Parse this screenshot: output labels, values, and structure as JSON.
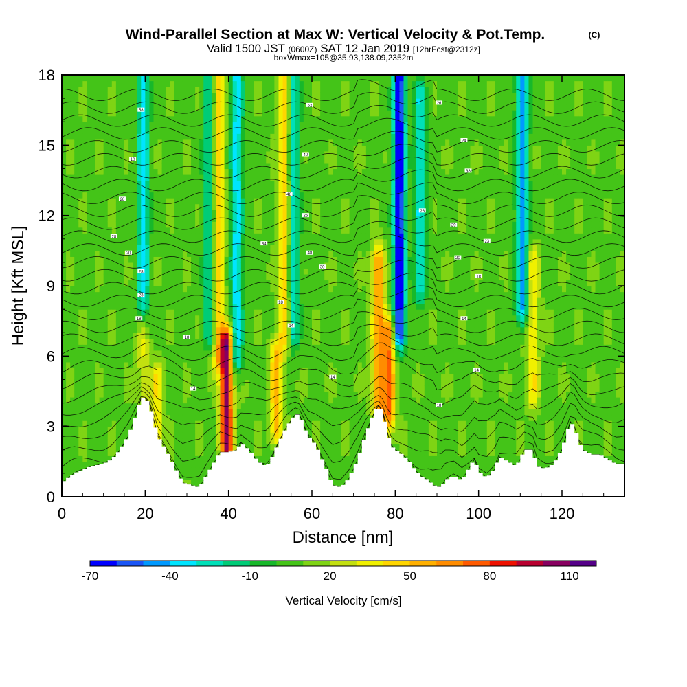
{
  "header": {
    "title": "Wind-Parallel Section at Max W: Vertical Velocity & Pot.Temp.",
    "copyright": "(C)",
    "valid_prefix": "Valid 1500 JST",
    "valid_zulu": "(0600Z)",
    "valid_date": "SAT 12 Jan 2019",
    "forecast": "[12hrFcst@2312z]",
    "box_info": "boxWmax=105@35.93,138.09,2352m"
  },
  "chart_data": {
    "type": "heatmap",
    "xlabel": "Distance [nm]",
    "ylabel": "Height [Kft MSL]",
    "xlim": [
      0,
      135
    ],
    "ylim": [
      0,
      18
    ],
    "x_ticks": [
      "0",
      "20",
      "40",
      "60",
      "80",
      "100",
      "120"
    ],
    "y_ticks": [
      "0",
      "3",
      "6",
      "9",
      "12",
      "15",
      "18"
    ],
    "x_tick_values": [
      0,
      20,
      40,
      60,
      80,
      100,
      120
    ],
    "y_tick_values": [
      0,
      3,
      6,
      9,
      12,
      15,
      18
    ],
    "colorbar": {
      "label": "Vertical Velocity [cm/s]",
      "tick_labels": [
        "-70",
        "-40",
        "-10",
        "20",
        "50",
        "80",
        "110"
      ],
      "tick_values": [
        -70,
        -40,
        -10,
        20,
        50,
        80,
        110
      ],
      "range": [
        -70,
        120
      ],
      "colors": [
        "#0000ff",
        "#1a55f5",
        "#0099ff",
        "#00e5ff",
        "#00e0b8",
        "#00cc77",
        "#17b82a",
        "#44c418",
        "#7fd414",
        "#c3e010",
        "#f0f000",
        "#ffd600",
        "#ffb000",
        "#ff8c00",
        "#ff5a00",
        "#ee1100",
        "#b80030",
        "#880060",
        "#550088"
      ]
    },
    "terrain_kft": [
      [
        0,
        0.6
      ],
      [
        3,
        1.0
      ],
      [
        7,
        1.3
      ],
      [
        10,
        1.4
      ],
      [
        12,
        1.6
      ],
      [
        14,
        2.0
      ],
      [
        16,
        2.6
      ],
      [
        18,
        3.6
      ],
      [
        19,
        4.2
      ],
      [
        20,
        4.2
      ],
      [
        21,
        4.0
      ],
      [
        22,
        3.3
      ],
      [
        23,
        2.6
      ],
      [
        25,
        2.0
      ],
      [
        27,
        1.3
      ],
      [
        29,
        0.6
      ],
      [
        31,
        0.5
      ],
      [
        33,
        0.4
      ],
      [
        35,
        1.0
      ],
      [
        37,
        1.6
      ],
      [
        38,
        1.9
      ],
      [
        40,
        1.9
      ],
      [
        42,
        2.0
      ],
      [
        43,
        2.3
      ],
      [
        45,
        2.0
      ],
      [
        47,
        1.5
      ],
      [
        49,
        1.3
      ],
      [
        50,
        1.5
      ],
      [
        52,
        2.3
      ],
      [
        54,
        3.0
      ],
      [
        56,
        3.5
      ],
      [
        57,
        3.5
      ],
      [
        59,
        2.6
      ],
      [
        61,
        2.2
      ],
      [
        63,
        1.4
      ],
      [
        65,
        0.5
      ],
      [
        67,
        0.4
      ],
      [
        69,
        0.8
      ],
      [
        71,
        1.6
      ],
      [
        73,
        2.7
      ],
      [
        75,
        3.6
      ],
      [
        76,
        3.9
      ],
      [
        77,
        3.6
      ],
      [
        78,
        2.8
      ],
      [
        79,
        2.2
      ],
      [
        80,
        2.0
      ],
      [
        81,
        1.9
      ],
      [
        83,
        1.6
      ],
      [
        85,
        1.1
      ],
      [
        86,
        0.9
      ],
      [
        88,
        0.7
      ],
      [
        89,
        0.5
      ],
      [
        91,
        0.4
      ],
      [
        92,
        0.7
      ],
      [
        94,
        0.9
      ],
      [
        96,
        0.7
      ],
      [
        98,
        1.3
      ],
      [
        99,
        1.6
      ],
      [
        100,
        1.1
      ],
      [
        102,
        0.8
      ],
      [
        104,
        1.2
      ],
      [
        105,
        1.7
      ],
      [
        107,
        1.5
      ],
      [
        109,
        1.3
      ],
      [
        110,
        1.6
      ],
      [
        111,
        2.0
      ],
      [
        113,
        2.0
      ],
      [
        114,
        1.3
      ],
      [
        116,
        1.2
      ],
      [
        118,
        1.4
      ],
      [
        120,
        2.0
      ],
      [
        121,
        2.6
      ],
      [
        122,
        3.2
      ],
      [
        123,
        3.0
      ],
      [
        124,
        2.4
      ],
      [
        125,
        2.0
      ],
      [
        127,
        1.8
      ],
      [
        129,
        1.8
      ],
      [
        131,
        1.6
      ],
      [
        133,
        1.4
      ],
      [
        135,
        1.4
      ]
    ],
    "updraft_columns": [
      {
        "x": 19.5,
        "base": 4.5,
        "top": 7.5,
        "peak_w": 30
      },
      {
        "x": 23,
        "base": 2.5,
        "top": 5,
        "peak_w": 40
      },
      {
        "x": 37.5,
        "base": 6,
        "top": 18,
        "peak_w": 50
      },
      {
        "x": 39.5,
        "base": 2.2,
        "top": 6.5,
        "peak_w": 105
      },
      {
        "x": 51.5,
        "base": 3,
        "top": 6,
        "peak_w": 55
      },
      {
        "x": 53.5,
        "base": 7,
        "top": 18,
        "peak_w": 50
      },
      {
        "x": 76,
        "base": 4,
        "top": 10,
        "peak_w": 60
      },
      {
        "x": 78.5,
        "base": 3.5,
        "top": 7,
        "peak_w": 70
      },
      {
        "x": 113,
        "base": 4.5,
        "top": 10,
        "peak_w": 40
      }
    ],
    "downdraft_columns": [
      {
        "x": 19.5,
        "base": 8,
        "top": 18,
        "peak_w": -35
      },
      {
        "x": 35.5,
        "base": 7,
        "top": 18,
        "peak_w": -25
      },
      {
        "x": 42,
        "base": 6,
        "top": 18,
        "peak_w": -35
      },
      {
        "x": 55.5,
        "base": 7,
        "top": 18,
        "peak_w": -30
      },
      {
        "x": 81,
        "base": 7,
        "top": 18,
        "peak_w": -70
      },
      {
        "x": 86,
        "base": 9,
        "top": 17,
        "peak_w": -30
      },
      {
        "x": 110.5,
        "base": 8,
        "top": 18,
        "peak_w": -45
      }
    ],
    "isentrope_labels": [
      {
        "x": 19,
        "y": 16.5,
        "text": "58"
      },
      {
        "x": 17,
        "y": 14.4,
        "text": "10"
      },
      {
        "x": 14.5,
        "y": 12.7,
        "text": "28"
      },
      {
        "x": 12.5,
        "y": 11.1,
        "text": "28"
      },
      {
        "x": 16,
        "y": 10.4,
        "text": "20"
      },
      {
        "x": 19,
        "y": 9.6,
        "text": "28"
      },
      {
        "x": 19,
        "y": 8.6,
        "text": "23"
      },
      {
        "x": 18.5,
        "y": 7.6,
        "text": "18"
      },
      {
        "x": 30,
        "y": 6.8,
        "text": "18"
      },
      {
        "x": 31.5,
        "y": 4.6,
        "text": "14"
      },
      {
        "x": 59.5,
        "y": 16.7,
        "text": "62"
      },
      {
        "x": 58.5,
        "y": 14.6,
        "text": "40"
      },
      {
        "x": 54.5,
        "y": 12.9,
        "text": "48"
      },
      {
        "x": 58.5,
        "y": 12.0,
        "text": "26"
      },
      {
        "x": 48.5,
        "y": 10.8,
        "text": "34"
      },
      {
        "x": 59.5,
        "y": 10.4,
        "text": "48"
      },
      {
        "x": 62.5,
        "y": 9.8,
        "text": "30"
      },
      {
        "x": 52.5,
        "y": 8.3,
        "text": "18"
      },
      {
        "x": 55,
        "y": 7.3,
        "text": "14"
      },
      {
        "x": 65,
        "y": 5.1,
        "text": "14"
      },
      {
        "x": 90.5,
        "y": 16.8,
        "text": "26"
      },
      {
        "x": 96.5,
        "y": 15.2,
        "text": "24"
      },
      {
        "x": 97.5,
        "y": 13.9,
        "text": "38"
      },
      {
        "x": 86.5,
        "y": 12.2,
        "text": "28"
      },
      {
        "x": 94,
        "y": 11.6,
        "text": "29"
      },
      {
        "x": 102,
        "y": 10.9,
        "text": "23"
      },
      {
        "x": 95,
        "y": 10.2,
        "text": "20"
      },
      {
        "x": 100,
        "y": 9.4,
        "text": "18"
      },
      {
        "x": 96.5,
        "y": 7.6,
        "text": "14"
      },
      {
        "x": 99.5,
        "y": 5.4,
        "text": "14"
      },
      {
        "x": 90.5,
        "y": 3.9,
        "text": "18"
      }
    ]
  }
}
